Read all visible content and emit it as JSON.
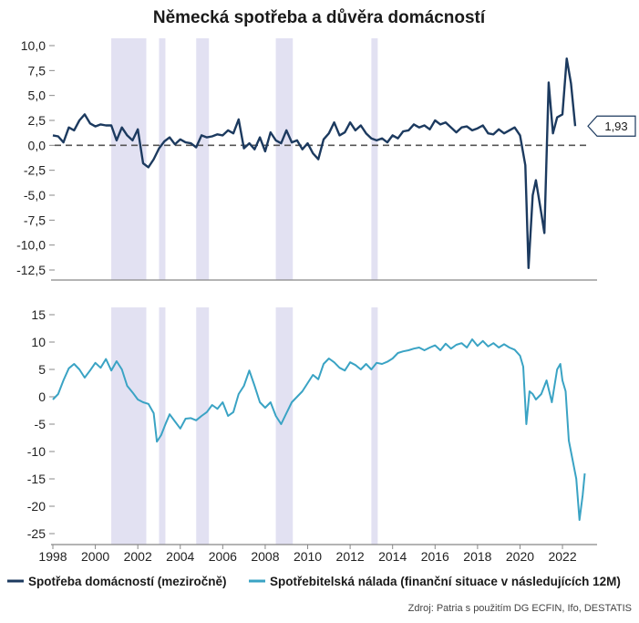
{
  "title": "Německá spotřeba a důvěra domácností",
  "source": "Zdroj: Patria s použitím DG ECFIN, Ifo, DESTATIS",
  "colors": {
    "consumption": "#1c3a5f",
    "sentiment": "#3aa3c4",
    "recession": "#e2e1f2",
    "axis": "#888888",
    "zero_line": "#555555"
  },
  "legend": [
    {
      "label": "Spotřeba domácností (meziročně)",
      "color": "#1c3a5f"
    },
    {
      "label": "Spotřebitelská nálada (finanční situace v následujících 12M)",
      "color": "#3aa3c4"
    }
  ],
  "callout": {
    "value": 1.93,
    "label": "1,93"
  },
  "chart_data": [
    {
      "type": "line",
      "panel": "top",
      "series_name": "Spotřeba domácností (meziročně)",
      "ylim": [
        -12.5,
        10.0
      ],
      "yticks": [
        "10,0",
        "7,5",
        "5,0",
        "2,5",
        "0,0",
        "-2,5",
        "-5,0",
        "-7,5",
        "-10,0",
        "-12,5"
      ],
      "ytick_values": [
        10,
        7.5,
        5,
        2.5,
        0,
        -2.5,
        -5,
        -7.5,
        -10,
        -12.5
      ],
      "xlim": [
        1998,
        2023.2
      ],
      "recession_bands": [
        [
          2000.75,
          2002.4
        ],
        [
          2003.0,
          2003.3
        ],
        [
          2004.75,
          2005.35
        ],
        [
          2008.5,
          2009.3
        ],
        [
          2013.0,
          2013.3
        ]
      ],
      "points": [
        [
          1998.0,
          1.0
        ],
        [
          1998.25,
          0.9
        ],
        [
          1998.5,
          0.3
        ],
        [
          1998.75,
          1.8
        ],
        [
          1999.0,
          1.5
        ],
        [
          1999.25,
          2.5
        ],
        [
          1999.5,
          3.1
        ],
        [
          1999.75,
          2.2
        ],
        [
          2000.0,
          1.9
        ],
        [
          2000.25,
          2.1
        ],
        [
          2000.5,
          2.0
        ],
        [
          2000.75,
          2.0
        ],
        [
          2001.0,
          0.5
        ],
        [
          2001.25,
          1.8
        ],
        [
          2001.5,
          1.0
        ],
        [
          2001.75,
          0.5
        ],
        [
          2002.0,
          1.6
        ],
        [
          2002.25,
          -1.8
        ],
        [
          2002.5,
          -2.2
        ],
        [
          2002.75,
          -1.4
        ],
        [
          2003.0,
          -0.3
        ],
        [
          2003.25,
          0.4
        ],
        [
          2003.5,
          0.8
        ],
        [
          2003.75,
          0.1
        ],
        [
          2004.0,
          0.6
        ],
        [
          2004.25,
          0.3
        ],
        [
          2004.5,
          0.2
        ],
        [
          2004.75,
          -0.2
        ],
        [
          2005.0,
          1.0
        ],
        [
          2005.25,
          0.8
        ],
        [
          2005.5,
          0.9
        ],
        [
          2005.75,
          1.1
        ],
        [
          2006.0,
          1.0
        ],
        [
          2006.25,
          1.5
        ],
        [
          2006.5,
          1.2
        ],
        [
          2006.75,
          2.6
        ],
        [
          2007.0,
          -0.3
        ],
        [
          2007.25,
          0.2
        ],
        [
          2007.5,
          -0.4
        ],
        [
          2007.75,
          0.8
        ],
        [
          2008.0,
          -0.6
        ],
        [
          2008.25,
          1.3
        ],
        [
          2008.5,
          0.5
        ],
        [
          2008.75,
          0.2
        ],
        [
          2009.0,
          1.5
        ],
        [
          2009.25,
          0.3
        ],
        [
          2009.5,
          0.5
        ],
        [
          2009.75,
          -0.4
        ],
        [
          2010.0,
          0.2
        ],
        [
          2010.25,
          -0.8
        ],
        [
          2010.5,
          -1.4
        ],
        [
          2010.75,
          0.6
        ],
        [
          2011.0,
          1.2
        ],
        [
          2011.25,
          2.3
        ],
        [
          2011.5,
          1.0
        ],
        [
          2011.75,
          1.3
        ],
        [
          2012.0,
          2.3
        ],
        [
          2012.25,
          1.5
        ],
        [
          2012.5,
          2.0
        ],
        [
          2012.75,
          1.2
        ],
        [
          2013.0,
          0.7
        ],
        [
          2013.25,
          0.5
        ],
        [
          2013.5,
          0.7
        ],
        [
          2013.75,
          0.3
        ],
        [
          2014.0,
          1.0
        ],
        [
          2014.25,
          0.7
        ],
        [
          2014.5,
          1.4
        ],
        [
          2014.75,
          1.5
        ],
        [
          2015.0,
          2.1
        ],
        [
          2015.25,
          1.8
        ],
        [
          2015.5,
          2.0
        ],
        [
          2015.75,
          1.6
        ],
        [
          2016.0,
          2.5
        ],
        [
          2016.25,
          2.1
        ],
        [
          2016.5,
          2.3
        ],
        [
          2016.75,
          1.8
        ],
        [
          2017.0,
          1.3
        ],
        [
          2017.25,
          1.8
        ],
        [
          2017.5,
          1.9
        ],
        [
          2017.75,
          1.5
        ],
        [
          2018.0,
          1.7
        ],
        [
          2018.25,
          2.0
        ],
        [
          2018.5,
          1.2
        ],
        [
          2018.75,
          1.1
        ],
        [
          2019.0,
          1.6
        ],
        [
          2019.25,
          1.2
        ],
        [
          2019.5,
          1.5
        ],
        [
          2019.75,
          1.8
        ],
        [
          2020.0,
          1.0
        ],
        [
          2020.25,
          -2.0
        ],
        [
          2020.4,
          -12.3
        ],
        [
          2020.6,
          -5.0
        ],
        [
          2020.75,
          -3.5
        ],
        [
          2021.0,
          -6.8
        ],
        [
          2021.15,
          -8.8
        ],
        [
          2021.35,
          6.3
        ],
        [
          2021.55,
          1.2
        ],
        [
          2021.75,
          2.8
        ],
        [
          2022.0,
          3.1
        ],
        [
          2022.2,
          8.7
        ],
        [
          2022.4,
          6.2
        ],
        [
          2022.6,
          1.93
        ]
      ]
    },
    {
      "type": "line",
      "panel": "bottom",
      "series_name": "Spotřebitelská nálada (finanční situace v následujících 12M)",
      "ylim": [
        -25,
        15
      ],
      "yticks": [
        "15",
        "10",
        "5",
        "0",
        "-5",
        "-10",
        "-15",
        "-20",
        "-25"
      ],
      "ytick_values": [
        15,
        10,
        5,
        0,
        -5,
        -10,
        -15,
        -20,
        -25
      ],
      "xlim": [
        1998,
        2023.2
      ],
      "xticks": [
        "1998",
        "2000",
        "2002",
        "2004",
        "2006",
        "2008",
        "2010",
        "2012",
        "2014",
        "2016",
        "2018",
        "2020",
        "2022"
      ],
      "xtick_values": [
        1998,
        2000,
        2002,
        2004,
        2006,
        2008,
        2010,
        2012,
        2014,
        2016,
        2018,
        2020,
        2022
      ],
      "recession_bands": [
        [
          2000.75,
          2002.4
        ],
        [
          2003.0,
          2003.3
        ],
        [
          2004.75,
          2005.35
        ],
        [
          2008.5,
          2009.3
        ],
        [
          2013.0,
          2013.3
        ]
      ],
      "points": [
        [
          1998.0,
          -0.5
        ],
        [
          1998.25,
          0.5
        ],
        [
          1998.5,
          3.0
        ],
        [
          1998.75,
          5.2
        ],
        [
          1999.0,
          6.0
        ],
        [
          1999.25,
          5.0
        ],
        [
          1999.5,
          3.5
        ],
        [
          1999.75,
          4.8
        ],
        [
          2000.0,
          6.2
        ],
        [
          2000.25,
          5.3
        ],
        [
          2000.5,
          6.9
        ],
        [
          2000.75,
          4.8
        ],
        [
          2001.0,
          6.5
        ],
        [
          2001.25,
          5.0
        ],
        [
          2001.5,
          2.0
        ],
        [
          2001.75,
          0.8
        ],
        [
          2002.0,
          -0.5
        ],
        [
          2002.25,
          -1.0
        ],
        [
          2002.5,
          -1.3
        ],
        [
          2002.75,
          -3.0
        ],
        [
          2002.9,
          -8.2
        ],
        [
          2003.1,
          -7.0
        ],
        [
          2003.3,
          -5.0
        ],
        [
          2003.5,
          -3.2
        ],
        [
          2003.75,
          -4.5
        ],
        [
          2004.0,
          -5.8
        ],
        [
          2004.25,
          -4.0
        ],
        [
          2004.5,
          -3.9
        ],
        [
          2004.75,
          -4.3
        ],
        [
          2005.0,
          -3.5
        ],
        [
          2005.25,
          -2.8
        ],
        [
          2005.5,
          -1.5
        ],
        [
          2005.75,
          -2.2
        ],
        [
          2006.0,
          -1.0
        ],
        [
          2006.25,
          -3.5
        ],
        [
          2006.5,
          -2.8
        ],
        [
          2006.75,
          0.5
        ],
        [
          2007.0,
          2.0
        ],
        [
          2007.25,
          4.8
        ],
        [
          2007.5,
          2.0
        ],
        [
          2007.75,
          -1.0
        ],
        [
          2008.0,
          -2.0
        ],
        [
          2008.25,
          -1.0
        ],
        [
          2008.5,
          -3.5
        ],
        [
          2008.75,
          -5.0
        ],
        [
          2009.0,
          -3.0
        ],
        [
          2009.25,
          -1.0
        ],
        [
          2009.5,
          0.0
        ],
        [
          2009.75,
          1.0
        ],
        [
          2010.0,
          2.5
        ],
        [
          2010.25,
          4.0
        ],
        [
          2010.5,
          3.2
        ],
        [
          2010.75,
          6.0
        ],
        [
          2011.0,
          7.0
        ],
        [
          2011.25,
          6.3
        ],
        [
          2011.5,
          5.3
        ],
        [
          2011.75,
          4.8
        ],
        [
          2012.0,
          6.3
        ],
        [
          2012.25,
          5.8
        ],
        [
          2012.5,
          5.0
        ],
        [
          2012.75,
          6.0
        ],
        [
          2013.0,
          5.0
        ],
        [
          2013.25,
          6.2
        ],
        [
          2013.5,
          6.0
        ],
        [
          2013.75,
          6.4
        ],
        [
          2014.0,
          7.0
        ],
        [
          2014.25,
          8.0
        ],
        [
          2014.5,
          8.3
        ],
        [
          2014.75,
          8.5
        ],
        [
          2015.0,
          8.8
        ],
        [
          2015.25,
          9.0
        ],
        [
          2015.5,
          8.5
        ],
        [
          2015.75,
          9.0
        ],
        [
          2016.0,
          9.4
        ],
        [
          2016.25,
          8.5
        ],
        [
          2016.5,
          9.7
        ],
        [
          2016.75,
          8.8
        ],
        [
          2017.0,
          9.5
        ],
        [
          2017.25,
          9.8
        ],
        [
          2017.5,
          9.0
        ],
        [
          2017.75,
          10.5
        ],
        [
          2018.0,
          9.3
        ],
        [
          2018.25,
          10.2
        ],
        [
          2018.5,
          9.2
        ],
        [
          2018.75,
          9.8
        ],
        [
          2019.0,
          9.0
        ],
        [
          2019.25,
          9.6
        ],
        [
          2019.5,
          9.0
        ],
        [
          2019.75,
          8.6
        ],
        [
          2020.0,
          7.5
        ],
        [
          2020.15,
          5.5
        ],
        [
          2020.3,
          -5.0
        ],
        [
          2020.45,
          1.0
        ],
        [
          2020.6,
          0.5
        ],
        [
          2020.75,
          -0.5
        ],
        [
          2021.0,
          0.5
        ],
        [
          2021.25,
          3.0
        ],
        [
          2021.5,
          -1.0
        ],
        [
          2021.75,
          5.0
        ],
        [
          2021.9,
          6.0
        ],
        [
          2022.0,
          3.0
        ],
        [
          2022.15,
          1.0
        ],
        [
          2022.3,
          -8.0
        ],
        [
          2022.5,
          -12.0
        ],
        [
          2022.65,
          -15.0
        ],
        [
          2022.8,
          -22.5
        ],
        [
          2022.95,
          -18.0
        ],
        [
          2023.05,
          -14.0
        ]
      ]
    }
  ]
}
